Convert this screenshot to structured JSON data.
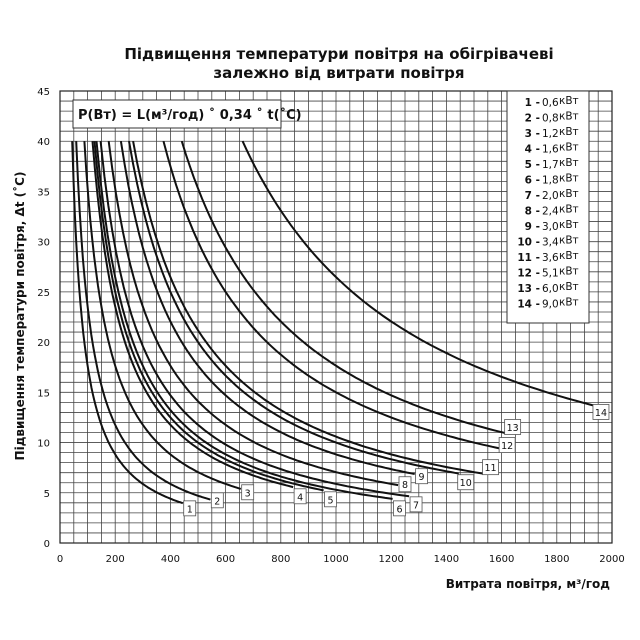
{
  "chart_data": {
    "type": "line",
    "title": [
      "Підвищення температури повітря на обігрівачеві",
      "залежно від витрати повітря"
    ],
    "xlabel": "Витрата повітря, м³/год",
    "ylabel": "Підвищення температури повітря, Δt (˚C)",
    "xlim": [
      0,
      2000
    ],
    "ylim": [
      0,
      45
    ],
    "xticks": [
      0,
      200,
      400,
      600,
      800,
      1000,
      1200,
      1400,
      1600,
      1800,
      2000
    ],
    "yticks": [
      0,
      5,
      10,
      15,
      20,
      25,
      30,
      35,
      40,
      45
    ],
    "grid": true,
    "formula": "P(Вт) = L(м³/год) ˚ 0,34 ˚ t(˚C)",
    "legend_position": "top-right",
    "unit": "кВт",
    "series": [
      {
        "name": "1",
        "power": "0,6",
        "label_at": [
          470,
          3.4
        ]
      },
      {
        "name": "2",
        "power": "0,8",
        "label_at": [
          570,
          4.2
        ]
      },
      {
        "name": "3",
        "power": "1,2",
        "label_at": [
          680,
          5.0
        ]
      },
      {
        "name": "4",
        "power": "1,6",
        "label_at": [
          870,
          4.6
        ]
      },
      {
        "name": "5",
        "power": "1,7",
        "label_at": [
          980,
          4.3
        ]
      },
      {
        "name": "6",
        "power": "1,8",
        "label_at": [
          1230,
          3.4
        ]
      },
      {
        "name": "7",
        "power": "2,0",
        "label_at": [
          1290,
          3.8
        ]
      },
      {
        "name": "8",
        "power": "2,4",
        "label_at": [
          1250,
          5.8
        ]
      },
      {
        "name": "9",
        "power": "3,0",
        "label_at": [
          1310,
          6.6
        ]
      },
      {
        "name": "10",
        "power": "3,4",
        "label_at": [
          1470,
          6.0
        ]
      },
      {
        "name": "11",
        "power": "3,6",
        "label_at": [
          1560,
          7.5
        ]
      },
      {
        "name": "12",
        "power": "5,1",
        "label_at": [
          1620,
          9.7
        ]
      },
      {
        "name": "13",
        "power": "6,0",
        "label_at": [
          1640,
          11.5
        ]
      },
      {
        "name": "14",
        "power": "9,0",
        "label_at": [
          1960,
          13.0
        ]
      }
    ]
  }
}
